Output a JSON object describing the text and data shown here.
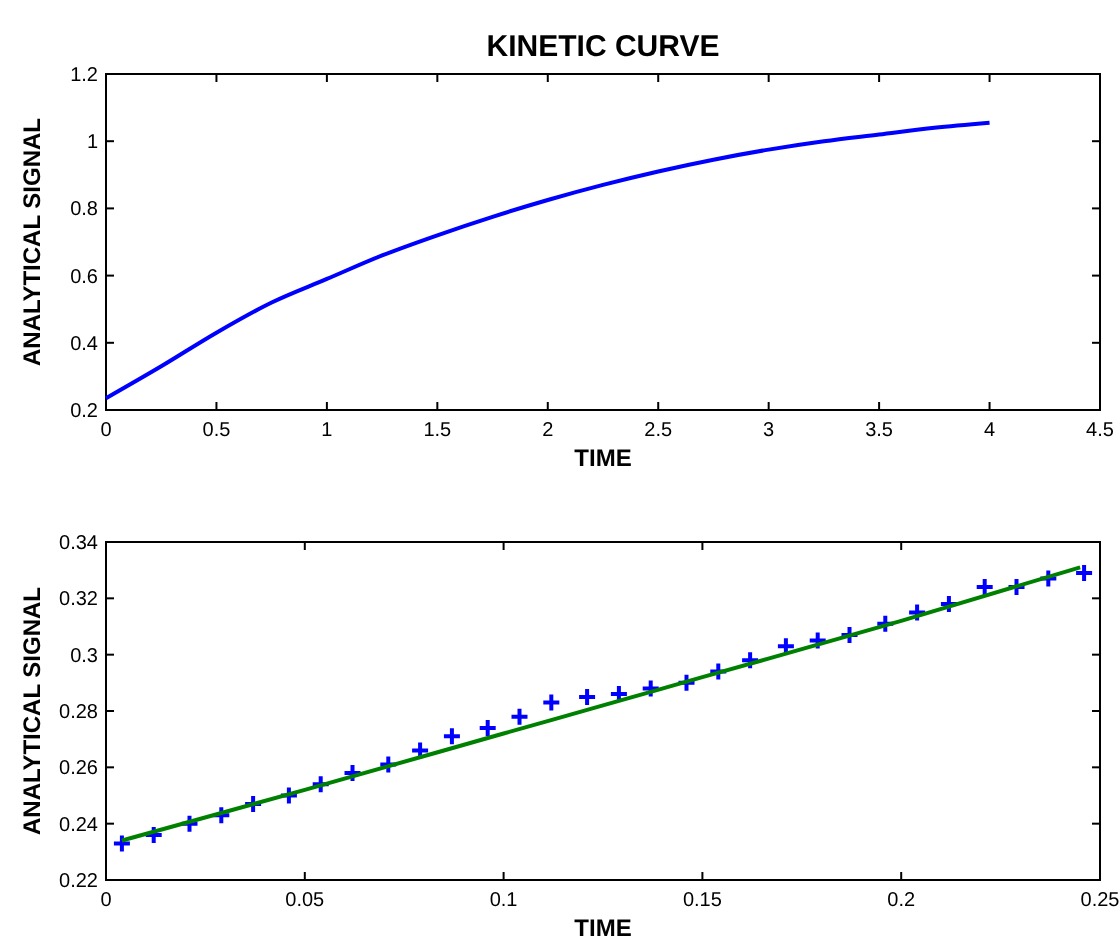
{
  "chart_data": [
    {
      "type": "line",
      "title": "KINETIC CURVE",
      "xlabel": "TIME",
      "ylabel": "ANALYTICAL SIGNAL",
      "xlim": [
        0,
        4.5
      ],
      "ylim": [
        0.2,
        1.2
      ],
      "xticks": [
        0,
        0.5,
        1,
        1.5,
        2,
        2.5,
        3,
        3.5,
        4,
        4.5
      ],
      "yticks": [
        0.2,
        0.4,
        0.6,
        0.8,
        1,
        1.2
      ],
      "grid": false,
      "marker": "none",
      "line_style": "solid",
      "series": [
        {
          "color": "#0000ff",
          "x": [
            0,
            0.25,
            0.5,
            0.75,
            1,
            1.25,
            1.5,
            1.75,
            2,
            2.25,
            2.5,
            2.75,
            3,
            3.25,
            3.5,
            3.75,
            4
          ],
          "values": [
            0.235,
            0.33,
            0.43,
            0.52,
            0.59,
            0.66,
            0.72,
            0.775,
            0.825,
            0.87,
            0.91,
            0.945,
            0.975,
            1.0,
            1.02,
            1.04,
            1.055
          ]
        }
      ]
    },
    {
      "type": "scatter",
      "xlabel": "TIME",
      "ylabel": "ANALYTICAL SIGNAL",
      "xlim": [
        0,
        0.25
      ],
      "ylim": [
        0.22,
        0.34
      ],
      "xticks": [
        0,
        0.05,
        0.1,
        0.15,
        0.2,
        0.25
      ],
      "yticks": [
        0.22,
        0.24,
        0.26,
        0.28,
        0.3,
        0.32,
        0.34
      ],
      "grid": false,
      "series": [
        {
          "color": "#0000ff",
          "marker": "cross",
          "x": [
            0.004,
            0.012,
            0.021,
            0.029,
            0.037,
            0.046,
            0.054,
            0.062,
            0.071,
            0.079,
            0.087,
            0.096,
            0.104,
            0.112,
            0.121,
            0.129,
            0.137,
            0.146,
            0.154,
            0.162,
            0.171,
            0.179,
            0.187,
            0.196,
            0.204,
            0.212,
            0.221,
            0.229,
            0.237,
            0.246
          ],
          "values": [
            0.233,
            0.236,
            0.24,
            0.243,
            0.247,
            0.25,
            0.254,
            0.258,
            0.261,
            0.266,
            0.271,
            0.274,
            0.278,
            0.283,
            0.285,
            0.286,
            0.288,
            0.29,
            0.294,
            0.298,
            0.303,
            0.305,
            0.307,
            0.311,
            0.315,
            0.318,
            0.324,
            0.324,
            0.327,
            0.329
          ]
        },
        {
          "type": "line",
          "color": "#008000",
          "marker": "none",
          "x": [
            0.004,
            0.05,
            0.1,
            0.125,
            0.15,
            0.2,
            0.245
          ],
          "values": [
            0.234,
            0.252,
            0.272,
            0.282,
            0.292,
            0.312,
            0.331
          ]
        }
      ]
    }
  ]
}
